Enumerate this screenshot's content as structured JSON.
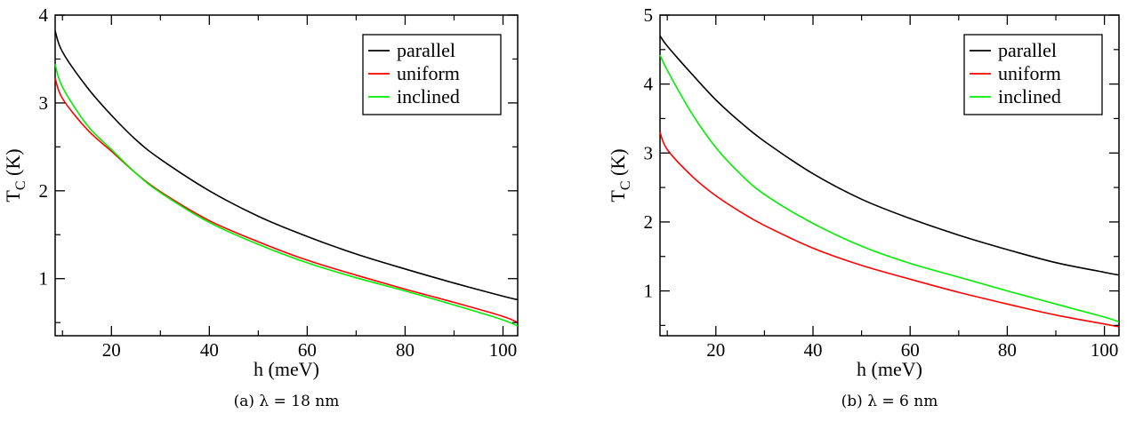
{
  "figure": {
    "captions": [
      "(a) λ = 18 nm",
      "(b) λ = 6 nm"
    ]
  },
  "chart_data": [
    {
      "type": "line",
      "xlabel": "h (meV)",
      "ylabel_main": "T",
      "ylabel_sub": "C",
      "ylabel_unit": " (K)",
      "xlim": [
        8.5,
        103
      ],
      "ylim": [
        0.35,
        4.0
      ],
      "xticks": [
        20,
        40,
        60,
        80,
        100
      ],
      "yticks": [
        1,
        2,
        3,
        4
      ],
      "legend_position": "top-right",
      "grid": false,
      "series": [
        {
          "name": "parallel",
          "color": "#000000",
          "x": [
            8.5,
            10,
            15,
            20,
            25,
            30,
            40,
            50,
            60,
            70,
            80,
            90,
            100,
            103
          ],
          "y": [
            3.82,
            3.58,
            3.18,
            2.86,
            2.58,
            2.36,
            2.0,
            1.71,
            1.48,
            1.28,
            1.11,
            0.95,
            0.8,
            0.76
          ]
        },
        {
          "name": "uniform",
          "color": "#ff0000",
          "x": [
            8.5,
            10,
            15,
            20,
            25,
            30,
            40,
            50,
            60,
            70,
            80,
            90,
            100,
            103
          ],
          "y": [
            3.28,
            3.05,
            2.7,
            2.45,
            2.2,
            1.99,
            1.66,
            1.42,
            1.21,
            1.04,
            0.88,
            0.73,
            0.57,
            0.5
          ]
        },
        {
          "name": "inclined",
          "color": "#00ee00",
          "x": [
            8.5,
            10,
            15,
            20,
            25,
            30,
            40,
            50,
            60,
            70,
            80,
            90,
            100,
            103
          ],
          "y": [
            3.44,
            3.18,
            2.75,
            2.47,
            2.2,
            1.98,
            1.64,
            1.39,
            1.18,
            1.01,
            0.86,
            0.7,
            0.53,
            0.46
          ]
        }
      ]
    },
    {
      "type": "line",
      "xlabel": "h (meV)",
      "ylabel_main": "T",
      "ylabel_sub": "C",
      "ylabel_unit": " (K)",
      "xlim": [
        8.5,
        103
      ],
      "ylim": [
        0.35,
        5.0
      ],
      "xticks": [
        20,
        40,
        60,
        80,
        100
      ],
      "yticks": [
        1,
        2,
        3,
        4,
        5
      ],
      "legend_position": "top-right",
      "grid": false,
      "series": [
        {
          "name": "parallel",
          "color": "#000000",
          "x": [
            8.5,
            10,
            15,
            20,
            25,
            30,
            40,
            50,
            60,
            70,
            80,
            90,
            100,
            103
          ],
          "y": [
            4.7,
            4.55,
            4.15,
            3.77,
            3.45,
            3.17,
            2.7,
            2.33,
            2.05,
            1.81,
            1.6,
            1.41,
            1.27,
            1.23
          ]
        },
        {
          "name": "uniform",
          "color": "#ff0000",
          "x": [
            8.5,
            10,
            15,
            20,
            25,
            30,
            40,
            50,
            60,
            70,
            80,
            90,
            100,
            103
          ],
          "y": [
            3.3,
            3.05,
            2.67,
            2.38,
            2.15,
            1.95,
            1.62,
            1.37,
            1.17,
            0.98,
            0.81,
            0.65,
            0.52,
            0.48
          ]
        },
        {
          "name": "inclined",
          "color": "#00ee00",
          "x": [
            8.5,
            10,
            15,
            20,
            25,
            30,
            40,
            50,
            60,
            70,
            80,
            90,
            100,
            103
          ],
          "y": [
            4.42,
            4.2,
            3.58,
            3.08,
            2.7,
            2.4,
            1.98,
            1.65,
            1.4,
            1.2,
            1.0,
            0.81,
            0.62,
            0.55
          ]
        }
      ]
    }
  ]
}
